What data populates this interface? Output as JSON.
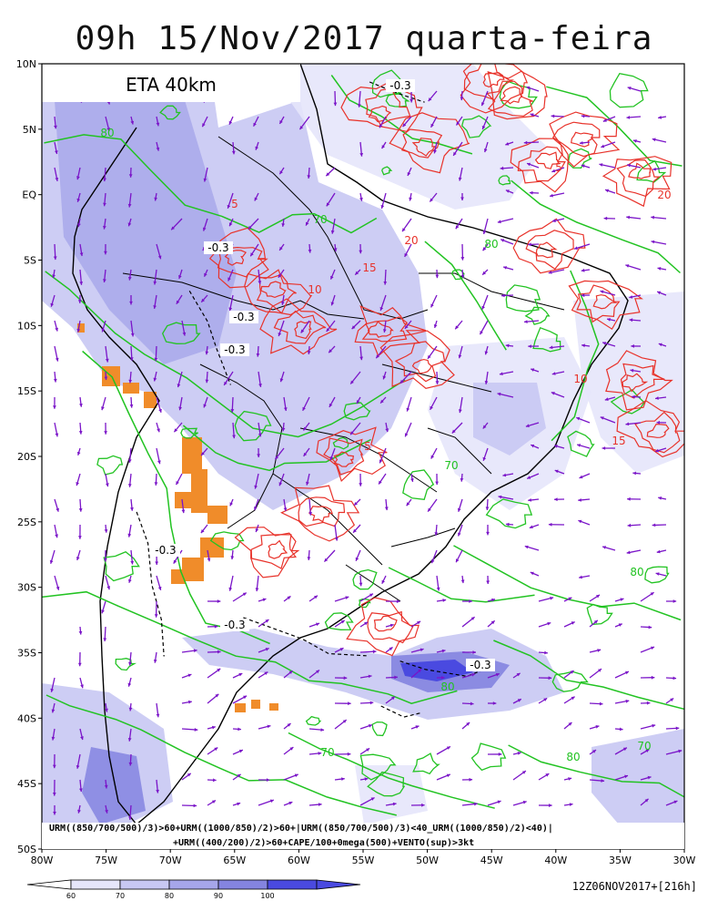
{
  "title": "09h 15/Nov/2017 quarta-feira",
  "model_label": "ETA 40km",
  "lat_labels": [
    "10N",
    "5N",
    "EQ",
    "5S",
    "10S",
    "15S",
    "20S",
    "25S",
    "30S",
    "35S",
    "40S",
    "45S",
    "50S"
  ],
  "lon_labels": [
    "80W",
    "75W",
    "70W",
    "65W",
    "60W",
    "55W",
    "50W",
    "45W",
    "40W",
    "35W",
    "30W"
  ],
  "caption_line1": "URM((850/700/500)/3)>60+URM((1000/850)/2)>60+|URM((850/700/500)/3)<40_URM((1000/850)/2)<40)|",
  "caption_line2": "+URM((400/200)/2)>60+CAPE/100+0mega(500)+VENTO(sup)>3kt",
  "run_info": "12Z06NOV2017+[216h]",
  "colorbar": {
    "labels": [
      "60",
      "70",
      "80",
      "90",
      "100"
    ],
    "colors": [
      "#e6e6fb",
      "#c8c8f3",
      "#a6a6ea",
      "#8484e0",
      "#4a4ae0"
    ]
  },
  "contour_labels_green": [
    "80",
    "70",
    "80",
    "70",
    "80",
    "70",
    "80",
    "70"
  ],
  "contour_labels_red": [
    "5",
    "10",
    "15",
    "20"
  ],
  "contour_labels_black": [
    "-0.3"
  ],
  "colors": {
    "humidity_contour": "#22c322",
    "cape_contour": "#e8322a",
    "wind_vector": "#7a14c8",
    "orography_mask": "#f08c2a",
    "coastline": "#000000"
  }
}
